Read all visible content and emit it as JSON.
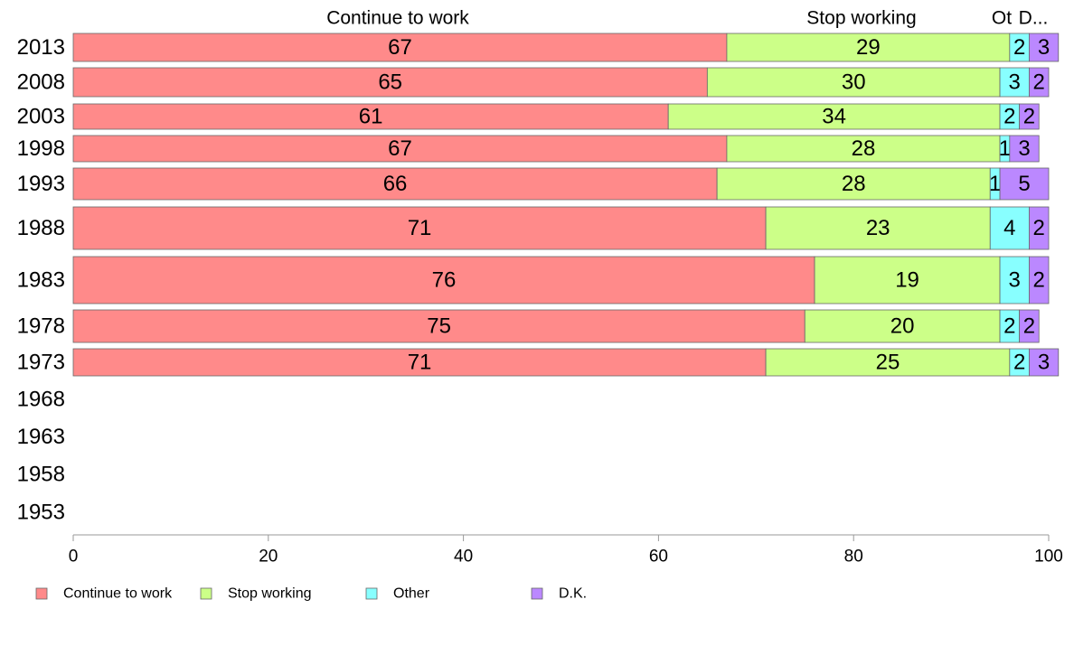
{
  "chart_data": {
    "type": "bar",
    "orientation": "horizontal",
    "stacked": true,
    "title": "",
    "xlabel": "",
    "ylabel": "",
    "xlim": [
      0,
      100
    ],
    "x_ticks": [
      0,
      20,
      40,
      60,
      80,
      100
    ],
    "x_tick_labels": [
      "0",
      "20",
      "40",
      "60",
      "80",
      "100"
    ],
    "grid": false,
    "legend_position": "bottom",
    "column_headers": [
      "Continue to work",
      "Stop working",
      "Ot",
      "D..."
    ],
    "categories": [
      "2013",
      "2008",
      "2003",
      "1998",
      "1993",
      "1988",
      "1983",
      "1978",
      "1973",
      "1968",
      "1963",
      "1958",
      "1953"
    ],
    "series": [
      {
        "name": "Continue to work",
        "color": "#FF8A8A",
        "values": [
          67,
          65,
          61,
          67,
          66,
          71,
          76,
          75,
          71,
          null,
          null,
          null,
          null
        ]
      },
      {
        "name": "Stop working",
        "color": "#CCFF88",
        "values": [
          29,
          30,
          34,
          28,
          28,
          23,
          19,
          20,
          25,
          null,
          null,
          null,
          null
        ]
      },
      {
        "name": "Other",
        "color": "#88FFFF",
        "values": [
          2,
          3,
          2,
          1,
          1,
          4,
          3,
          2,
          2,
          null,
          null,
          null,
          null
        ]
      },
      {
        "name": "D.K.",
        "color": "#BB88FF",
        "values": [
          3,
          2,
          2,
          3,
          5,
          2,
          2,
          2,
          3,
          null,
          null,
          null,
          null
        ]
      }
    ],
    "legend": [
      "Continue to work",
      "Stop working",
      "Other",
      "D.K."
    ]
  }
}
